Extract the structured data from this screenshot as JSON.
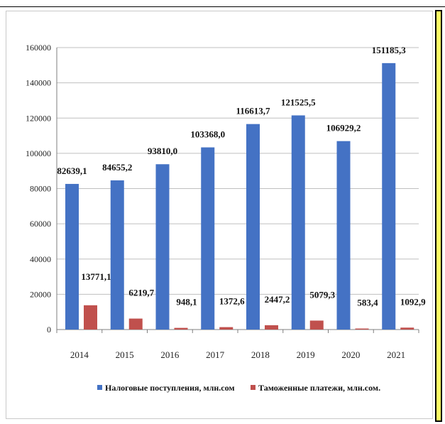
{
  "chart_data": {
    "type": "bar",
    "categories": [
      "2014",
      "2015",
      "2016",
      "2017",
      "2018",
      "2019",
      "2020",
      "2021"
    ],
    "series": [
      {
        "name": "Налоговые поступления, млн.сом",
        "color": "#4472c4",
        "values": [
          82639.1,
          84655.2,
          93810.0,
          103368.0,
          116613.7,
          121525.5,
          106929.2,
          151185.3
        ],
        "labels": [
          "82639,1",
          "84655,2",
          "93810,0",
          "103368,0",
          "116613,7",
          "121525,5",
          "106929,2",
          "151185,3"
        ]
      },
      {
        "name": "Таможенные платежи, млн.сом.",
        "color": "#c0504d",
        "values": [
          13771.1,
          6219.7,
          948.1,
          1372.6,
          2447.2,
          5079.3,
          583.4,
          1092.9
        ],
        "labels": [
          "13771,1",
          "6219,7",
          "948,1",
          "1372,6",
          "2447,2",
          "5079,3",
          "583,4",
          "1092,9"
        ]
      }
    ],
    "ylim": [
      0,
      160000
    ],
    "yticks": [
      0,
      20000,
      40000,
      60000,
      80000,
      100000,
      120000,
      140000,
      160000
    ],
    "grid": true,
    "legend_position": "bottom"
  }
}
